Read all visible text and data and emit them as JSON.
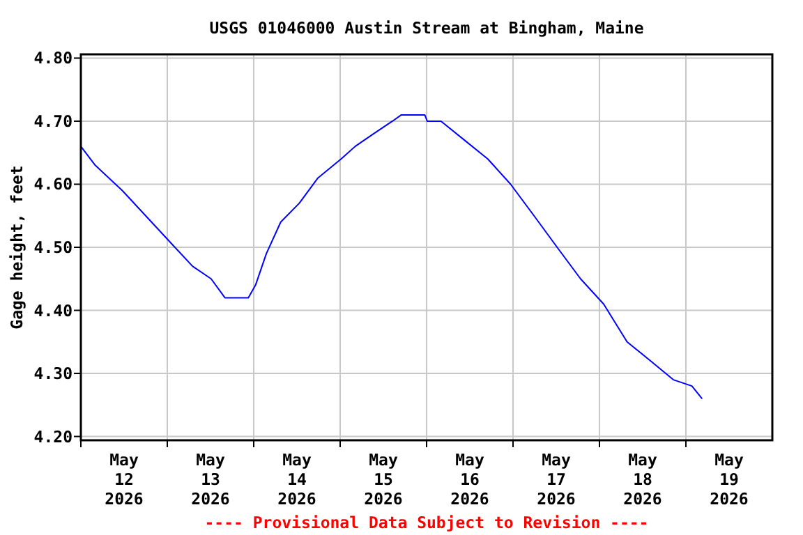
{
  "chart_data": {
    "type": "line",
    "title": "USGS 01046000 Austin Stream at Bingham, Maine",
    "ylabel": "Gage height, feet",
    "annotations": [
      "---- Provisional Data Subject to Revision ----"
    ],
    "xlim": [
      "2026-05-12T00:00",
      "2026-05-20T00:00"
    ],
    "xticks": [
      {
        "value": "2026-05-12T00:00",
        "label": null
      },
      {
        "value": "2026-05-12T12:00",
        "label": "May 12 2026"
      },
      {
        "value": "2026-05-13T00:00",
        "label": null
      },
      {
        "value": "2026-05-13T12:00",
        "label": "May 13 2026"
      },
      {
        "value": "2026-05-14T00:00",
        "label": null
      },
      {
        "value": "2026-05-14T12:00",
        "label": "May 14 2026"
      },
      {
        "value": "2026-05-15T00:00",
        "label": null
      },
      {
        "value": "2026-05-15T12:00",
        "label": "May 15 2026"
      },
      {
        "value": "2026-05-16T00:00",
        "label": null
      },
      {
        "value": "2026-05-16T12:00",
        "label": "May 16 2026"
      },
      {
        "value": "2026-05-17T00:00",
        "label": null
      },
      {
        "value": "2026-05-17T12:00",
        "label": "May 17 2026"
      },
      {
        "value": "2026-05-18T00:00",
        "label": null
      },
      {
        "value": "2026-05-18T12:00",
        "label": "May 18 2026"
      },
      {
        "value": "2026-05-19T00:00",
        "label": null
      },
      {
        "value": "2026-05-19T12:00",
        "label": "May 19 2026"
      }
    ],
    "ylim": [
      4.194,
      4.806
    ],
    "yticks": [
      {
        "value": 4.2,
        "label": "4.20"
      },
      {
        "value": 4.3,
        "label": "4.30"
      },
      {
        "value": 4.4,
        "label": "4.40"
      },
      {
        "value": 4.5,
        "label": "4.50"
      },
      {
        "value": 4.6,
        "label": "4.60"
      },
      {
        "value": 4.7,
        "label": "4.70"
      },
      {
        "value": 4.8,
        "label": "4.80"
      }
    ],
    "grid": true,
    "marker": "none",
    "line_style": "solid",
    "series": [
      {
        "color": "#0000ff",
        "x": [
          "2026-05-12T00:00",
          "2026-05-12T04:00",
          "2026-05-12T11:30",
          "2026-05-12T18:00",
          "2026-05-13T00:30",
          "2026-05-13T07:00",
          "2026-05-13T12:10",
          "2026-05-13T16:00",
          "2026-05-13T22:30",
          "2026-05-14T00:30",
          "2026-05-14T03:30",
          "2026-05-14T07:30",
          "2026-05-14T12:40",
          "2026-05-14T17:50",
          "2026-05-15T00:15",
          "2026-05-15T04:10",
          "2026-05-15T09:15",
          "2026-05-15T14:30",
          "2026-05-15T17:00",
          "2026-05-15T23:30",
          "2026-05-16T00:10",
          "2026-05-16T04:00",
          "2026-05-16T10:30",
          "2026-05-16T17:00",
          "2026-05-16T23:20",
          "2026-05-17T05:50",
          "2026-05-17T12:15",
          "2026-05-17T18:45",
          "2026-05-18T01:10",
          "2026-05-18T07:40",
          "2026-05-18T14:10",
          "2026-05-18T20:30",
          "2026-05-19T01:40",
          "2026-05-19T04:30"
        ],
        "values": [
          4.66,
          4.63,
          4.59,
          4.55,
          4.51,
          4.47,
          4.45,
          4.42,
          4.42,
          4.44,
          4.49,
          4.54,
          4.57,
          4.61,
          4.64,
          4.66,
          4.68,
          4.7,
          4.71,
          4.71,
          4.7,
          4.7,
          4.67,
          4.64,
          4.6,
          4.55,
          4.5,
          4.45,
          4.41,
          4.35,
          4.32,
          4.29,
          4.28,
          4.26
        ]
      }
    ]
  }
}
